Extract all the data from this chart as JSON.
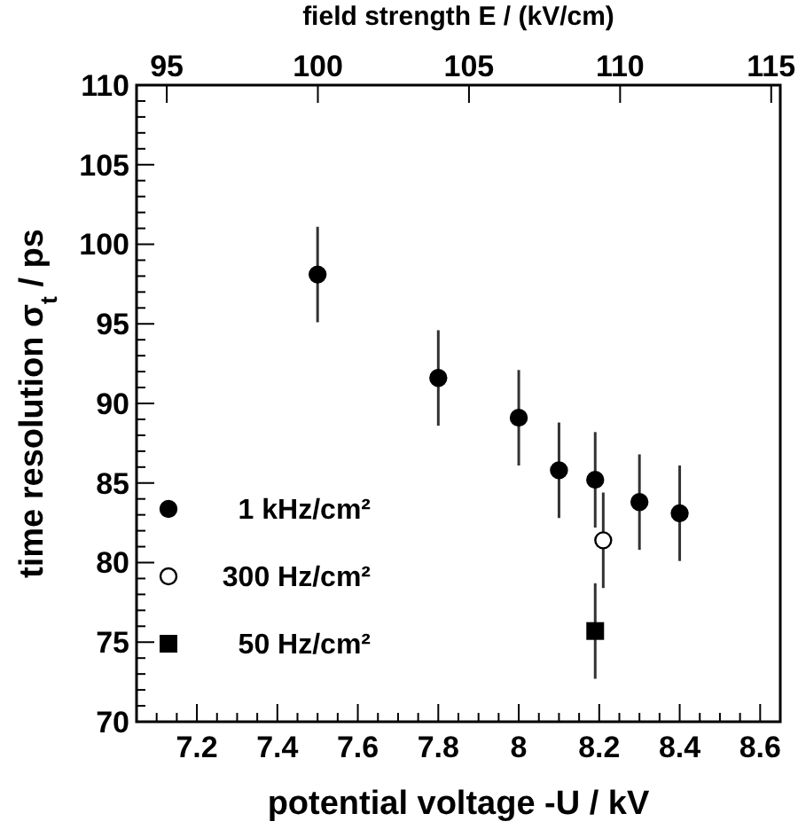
{
  "chart_data": {
    "type": "scatter",
    "xlabel": "potential voltage  -U / kV",
    "ylabel": "time resolution  σ$_{t}$ / ps",
    "x2label": "field strength  E / (kV/cm)",
    "xlim": [
      7.05,
      8.65
    ],
    "xticks": [
      7.2,
      7.4,
      7.6,
      7.8,
      {
        "value": 8,
        "label": "8"
      },
      8.2,
      8.4,
      8.6
    ],
    "x2lim": [
      94,
      115.3
    ],
    "x2ticks": [
      95,
      100,
      105,
      110,
      115
    ],
    "ylim": [
      70,
      110
    ],
    "yticks": [
      70,
      75,
      80,
      85,
      90,
      95,
      100,
      105,
      110
    ],
    "legend": "bottom left",
    "series": [
      {
        "name": "1 kHz/cm²",
        "color": "#000000",
        "marker": "circle",
        "x": [
          7.5,
          7.8,
          8.0,
          8.1,
          8.19,
          8.3,
          8.4
        ],
        "values": [
          98.1,
          91.6,
          89.1,
          85.8,
          85.2,
          83.8,
          83.1
        ],
        "errors": [
          3,
          3,
          3,
          3,
          3,
          3,
          3
        ]
      },
      {
        "name": "300 Hz/cm²",
        "color": "#ffffff",
        "marker": "circle",
        "x": [
          8.21
        ],
        "values": [
          81.4
        ],
        "errors": [
          3
        ]
      },
      {
        "name": "50 Hz/cm²",
        "color": "#000000",
        "marker": "square",
        "x": [
          8.19
        ],
        "values": [
          75.7
        ],
        "errors": [
          3
        ]
      }
    ]
  }
}
